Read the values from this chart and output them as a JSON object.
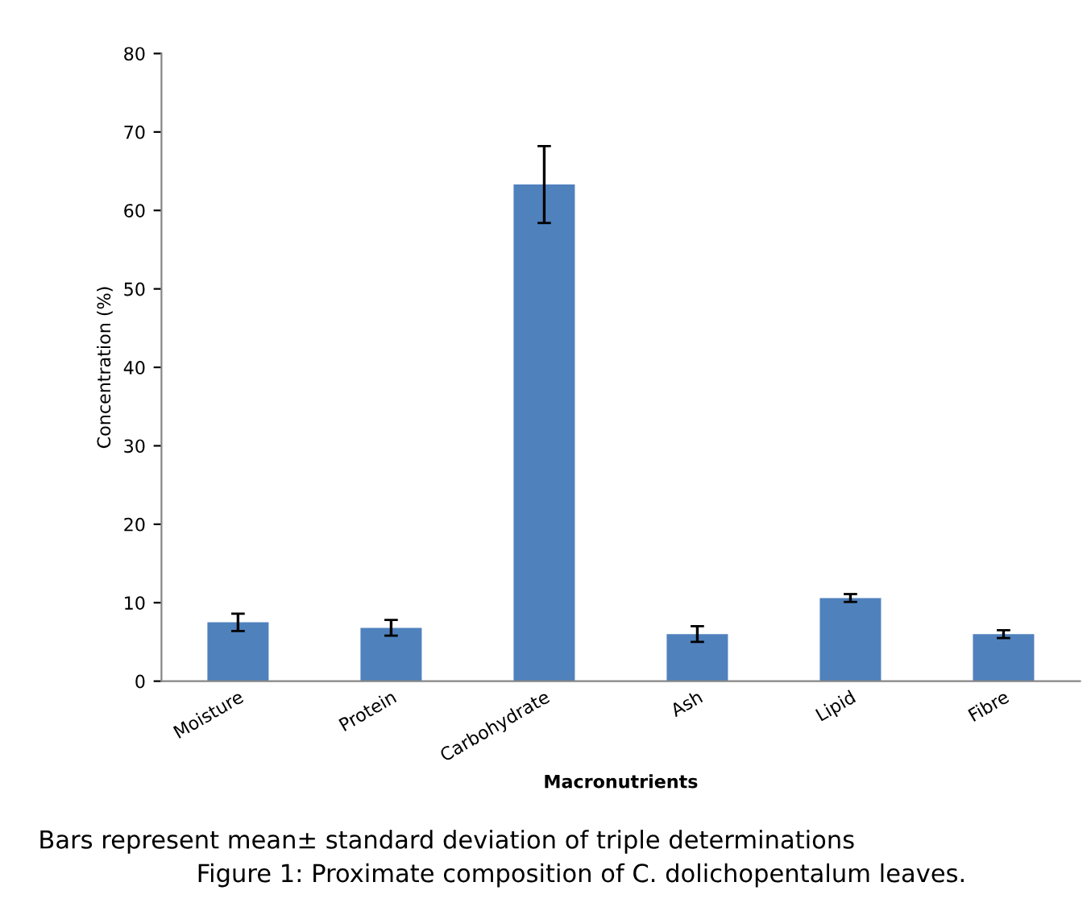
{
  "chart_data": {
    "type": "bar",
    "categories": [
      "Moisture",
      "Protein",
      "Carbohydrate",
      "Ash",
      "Lipid",
      "Fibre"
    ],
    "values": [
      7.5,
      6.8,
      63.3,
      6.0,
      10.6,
      6.0
    ],
    "errors": [
      1.1,
      1.0,
      4.9,
      1.0,
      0.5,
      0.5
    ],
    "color": "#4f81bd",
    "xlabel": "Macronutrients",
    "ylabel": "Concentration (%)",
    "ylim": [
      0,
      80
    ],
    "yticks": [
      0,
      10,
      20,
      30,
      40,
      50,
      60,
      70,
      80
    ],
    "annotations": [
      "Bars represent mean± standard deviation of triple determinations",
      "Figure 1: Proximate composition of C. dolichopentalum leaves."
    ]
  }
}
